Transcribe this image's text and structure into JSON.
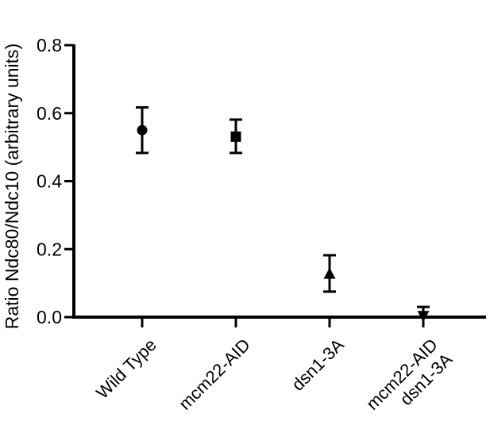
{
  "chart_data": {
    "type": "scatter",
    "title": "",
    "xlabel": "",
    "ylabel": "Ratio Ndc80/Ndc10 (arbitrary units)",
    "ylim": [
      0,
      0.8
    ],
    "yticks": [
      "0.0",
      "0.2",
      "0.4",
      "0.6",
      "0.8"
    ],
    "grid": false,
    "legend": "none",
    "categories": [
      {
        "lines": [
          "Wild Type"
        ]
      },
      {
        "lines": [
          "mcm22-AID"
        ]
      },
      {
        "lines": [
          "dsn1-3A"
        ]
      },
      {
        "lines": [
          "mcm22-AID",
          "dsn1-3A"
        ]
      }
    ],
    "points": [
      {
        "category": "Wild Type",
        "marker": "circle",
        "mean": 0.55,
        "err_low": 0.483,
        "err_high": 0.617
      },
      {
        "category": "mcm22-AID",
        "marker": "square",
        "mean": 0.531,
        "err_low": 0.483,
        "err_high": 0.581
      },
      {
        "category": "dsn1-3A",
        "marker": "triangle-up",
        "mean": 0.128,
        "err_low": 0.075,
        "err_high": 0.182
      },
      {
        "category": "mcm22-AID dsn1-3A",
        "marker": "triangle-down",
        "mean": 0.003,
        "err_low": 0.0,
        "err_high": 0.03
      }
    ],
    "colors": {
      "marker": "#000000",
      "axis": "#000000"
    }
  }
}
